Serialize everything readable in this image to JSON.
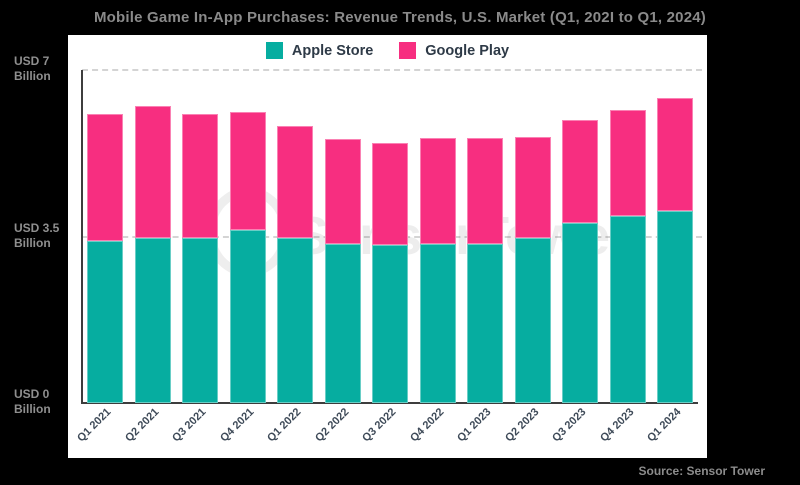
{
  "title": "Mobile Game In-App Purchases: Revenue Trends, U.S. Market (Q1, 202I to Q1, 2024)",
  "source": "Source: Sensor Tower",
  "watermark": "SensorTower",
  "colors": {
    "background": "#000000",
    "panel": "#ffffff",
    "apple": "#06ada0",
    "google": "#f72e80",
    "title_text": "#8a8a8a",
    "y_axis_label": "#8f8f8f",
    "x_axis_label": "#3e4a58",
    "grid": "#d4d4d4",
    "axis_line": "#3d3d3d"
  },
  "chart_data": {
    "type": "bar",
    "stacked": true,
    "title": "Mobile Game In-App Purchases: Revenue Trends, U.S. Market (Q1, 202I to Q1, 2024)",
    "categories": [
      "Q1 2021",
      "Q2 2021",
      "Q3 2021",
      "Q4 2021",
      "Q1 2022",
      "Q2 2022",
      "Q3 2022",
      "Q4 2022",
      "Q1 2023",
      "Q2 2023",
      "Q3 2023",
      "Q4 2023",
      "Q1 2024"
    ],
    "series": [
      {
        "name": "Apple Store",
        "color": "#06ada0",
        "values": [
          3.4,
          3.47,
          3.46,
          3.63,
          3.47,
          3.35,
          3.32,
          3.35,
          3.35,
          3.46,
          3.79,
          3.93,
          4.04
        ]
      },
      {
        "name": "Google Play",
        "color": "#f72e80",
        "values": [
          2.68,
          2.77,
          2.61,
          2.47,
          2.35,
          2.2,
          2.14,
          2.22,
          2.22,
          2.13,
          2.16,
          2.23,
          2.37
        ]
      }
    ],
    "units": "USD Billion",
    "ylim": [
      0,
      7
    ],
    "y_ticks": [
      {
        "value": 7,
        "label": "USD 7",
        "unit": "Billion"
      },
      {
        "value": 3.5,
        "label": "USD 3.5",
        "unit": "Billion"
      },
      {
        "value": 0,
        "label": "USD 0",
        "unit": "Billion"
      }
    ],
    "grid": "dashed horizontal at y=3.5 and y=7",
    "legend_position": "top-center"
  }
}
